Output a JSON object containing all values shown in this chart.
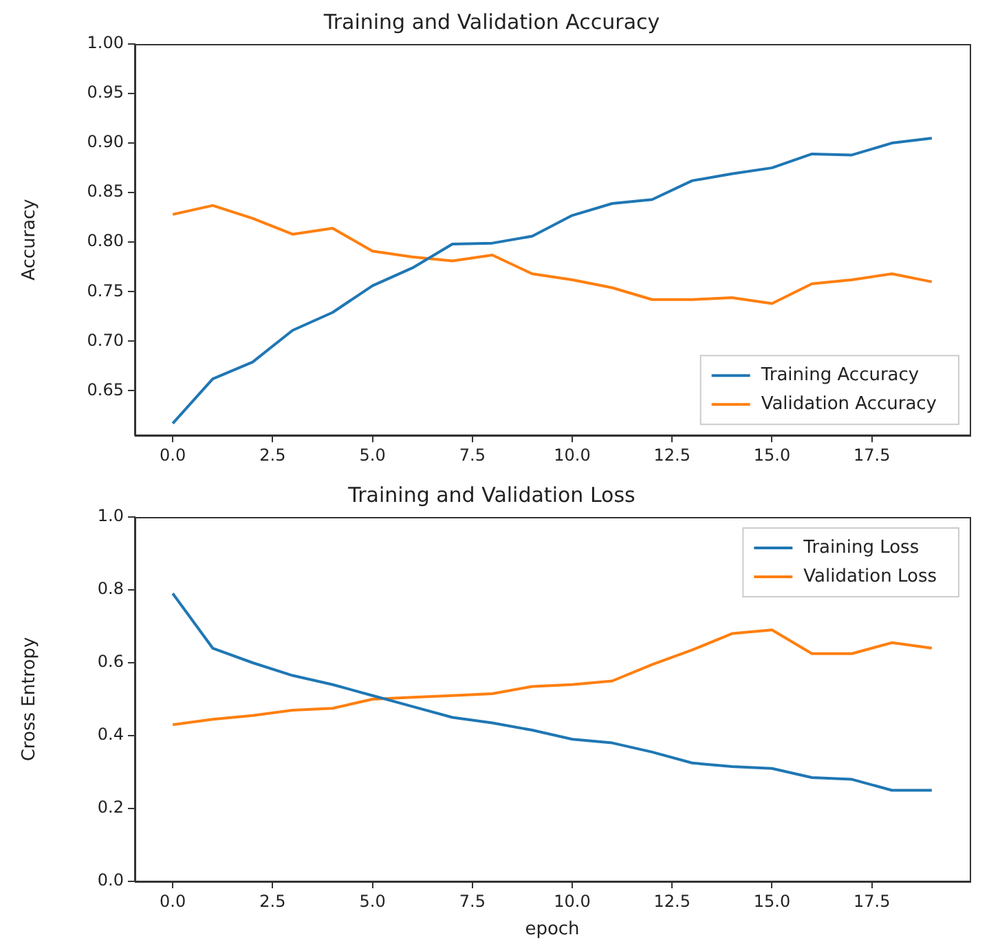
{
  "chart_data": [
    {
      "type": "line",
      "title": "Training and Validation Accuracy",
      "ylabel": "Accuracy",
      "x": [
        0,
        1,
        2,
        3,
        4,
        5,
        6,
        7,
        8,
        9,
        10,
        11,
        12,
        13,
        14,
        15,
        16,
        17,
        18,
        19
      ],
      "xlim": [
        -0.95,
        19.95
      ],
      "xticks": [
        {
          "value": 0,
          "label": "0.0"
        },
        {
          "value": 2.5,
          "label": "2.5"
        },
        {
          "value": 5,
          "label": "5.0"
        },
        {
          "value": 7.5,
          "label": "7.5"
        },
        {
          "value": 10,
          "label": "10.0"
        },
        {
          "value": 12.5,
          "label": "12.5"
        },
        {
          "value": 15,
          "label": "15.0"
        },
        {
          "value": 17.5,
          "label": "17.5"
        }
      ],
      "ylim": [
        0.605,
        1.0
      ],
      "yticks": [
        {
          "value": 0.65,
          "label": "0.65"
        },
        {
          "value": 0.7,
          "label": "0.70"
        },
        {
          "value": 0.75,
          "label": "0.75"
        },
        {
          "value": 0.8,
          "label": "0.80"
        },
        {
          "value": 0.85,
          "label": "0.85"
        },
        {
          "value": 0.9,
          "label": "0.90"
        },
        {
          "value": 0.95,
          "label": "0.95"
        },
        {
          "value": 1.0,
          "label": "1.00"
        }
      ],
      "grid": false,
      "legend": "bottom right",
      "series": [
        {
          "name": "Training Accuracy",
          "color": "#1f77b4",
          "values": [
            0.617,
            0.662,
            0.679,
            0.711,
            0.729,
            0.756,
            0.774,
            0.798,
            0.799,
            0.806,
            0.827,
            0.839,
            0.843,
            0.862,
            0.869,
            0.875,
            0.889,
            0.888,
            0.9,
            0.905
          ]
        },
        {
          "name": "Validation Accuracy",
          "color": "#ff7f0e",
          "values": [
            0.828,
            0.837,
            0.824,
            0.808,
            0.814,
            0.791,
            0.785,
            0.781,
            0.787,
            0.768,
            0.762,
            0.754,
            0.742,
            0.742,
            0.744,
            0.738,
            0.758,
            0.762,
            0.768,
            0.76
          ]
        }
      ]
    },
    {
      "type": "line",
      "title": "Training and Validation Loss",
      "xlabel": "epoch",
      "ylabel": "Cross Entropy",
      "x": [
        0,
        1,
        2,
        3,
        4,
        5,
        6,
        7,
        8,
        9,
        10,
        11,
        12,
        13,
        14,
        15,
        16,
        17,
        18,
        19
      ],
      "xlim": [
        -0.95,
        19.95
      ],
      "xticks": [
        {
          "value": 0,
          "label": "0.0"
        },
        {
          "value": 2.5,
          "label": "2.5"
        },
        {
          "value": 5,
          "label": "5.0"
        },
        {
          "value": 7.5,
          "label": "7.5"
        },
        {
          "value": 10,
          "label": "10.0"
        },
        {
          "value": 12.5,
          "label": "12.5"
        },
        {
          "value": 15,
          "label": "15.0"
        },
        {
          "value": 17.5,
          "label": "17.5"
        }
      ],
      "ylim": [
        0,
        1
      ],
      "yticks": [
        {
          "value": 0,
          "label": "0.0"
        },
        {
          "value": 0.2,
          "label": "0.2"
        },
        {
          "value": 0.4,
          "label": "0.4"
        },
        {
          "value": 0.6,
          "label": "0.6"
        },
        {
          "value": 0.8,
          "label": "0.8"
        },
        {
          "value": 1,
          "label": "1.0"
        }
      ],
      "grid": false,
      "legend": "top right",
      "series": [
        {
          "name": "Training Loss",
          "color": "#1f77b4",
          "values": [
            0.79,
            0.64,
            0.6,
            0.565,
            0.54,
            0.51,
            0.48,
            0.45,
            0.435,
            0.415,
            0.39,
            0.38,
            0.355,
            0.325,
            0.315,
            0.31,
            0.285,
            0.28,
            0.25,
            0.25
          ]
        },
        {
          "name": "Validation Loss",
          "color": "#ff7f0e",
          "values": [
            0.43,
            0.445,
            0.455,
            0.47,
            0.475,
            0.5,
            0.505,
            0.51,
            0.515,
            0.535,
            0.54,
            0.55,
            0.595,
            0.635,
            0.68,
            0.69,
            0.625,
            0.625,
            0.655,
            0.64
          ]
        }
      ]
    }
  ]
}
